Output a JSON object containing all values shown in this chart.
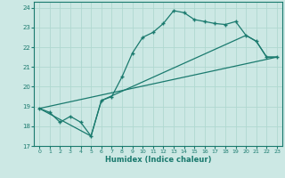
{
  "xlabel": "Humidex (Indice chaleur)",
  "bg_color": "#cce8e4",
  "line_color": "#1a7a6e",
  "grid_color": "#b0d8d0",
  "xlim": [
    -0.5,
    23.5
  ],
  "ylim": [
    17,
    24.3
  ],
  "yticks": [
    17,
    18,
    19,
    20,
    21,
    22,
    23,
    24
  ],
  "xticks": [
    0,
    1,
    2,
    3,
    4,
    5,
    6,
    7,
    8,
    9,
    10,
    11,
    12,
    13,
    14,
    15,
    16,
    17,
    18,
    19,
    20,
    21,
    22,
    23
  ],
  "line1_x": [
    0,
    1,
    2,
    3,
    4,
    5,
    6,
    7,
    8,
    9,
    10,
    11,
    12,
    13,
    14,
    15,
    16,
    17,
    18,
    19,
    20,
    21,
    22,
    23
  ],
  "line1_y": [
    18.9,
    18.7,
    18.2,
    18.5,
    18.2,
    17.5,
    19.3,
    19.5,
    20.5,
    21.7,
    22.5,
    22.75,
    23.2,
    23.85,
    23.75,
    23.4,
    23.3,
    23.2,
    23.15,
    23.3,
    22.6,
    22.3,
    21.5,
    21.5
  ],
  "line2_x": [
    0,
    23
  ],
  "line2_y": [
    18.9,
    21.5
  ],
  "line3_x": [
    0,
    5,
    6,
    20,
    21,
    22,
    23
  ],
  "line3_y": [
    18.9,
    17.5,
    19.3,
    22.6,
    22.3,
    21.5,
    21.5
  ]
}
